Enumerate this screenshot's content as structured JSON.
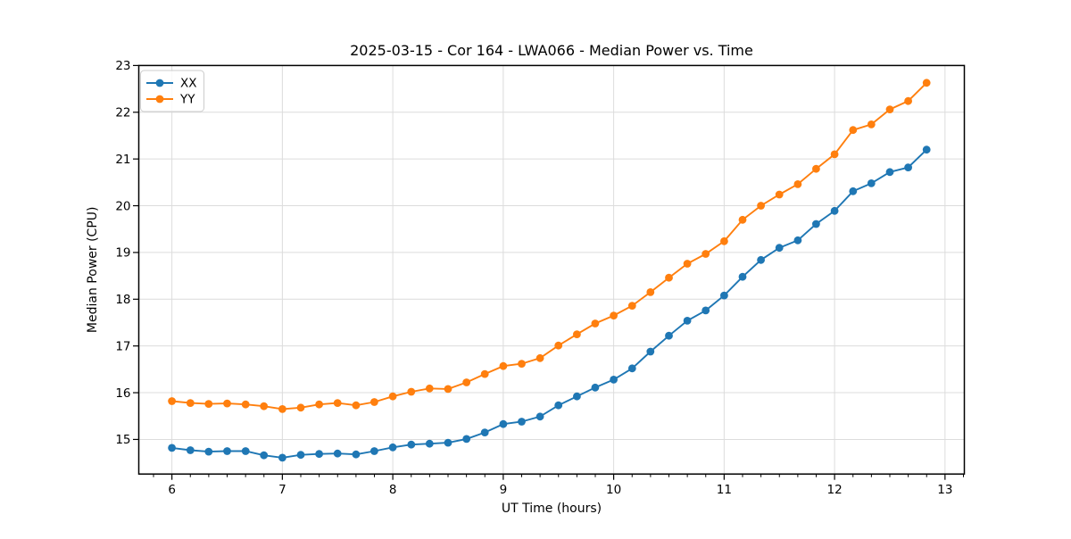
{
  "figure": {
    "background": "#ffffff",
    "text_color": "#000000",
    "grid_color": "#dcdcdc",
    "spine_color": "#000000"
  },
  "chart_data": {
    "type": "line",
    "title": "2025-03-15 - Cor 164 - LWA066 - Median Power vs. Time",
    "xlabel": "UT Time (hours)",
    "ylabel": "Median Power (CPU)",
    "xlim": [
      5.7,
      13.175
    ],
    "ylim": [
      14.26,
      23.0
    ],
    "xticks": [
      6,
      7,
      8,
      9,
      10,
      11,
      12,
      13
    ],
    "yticks": [
      15,
      16,
      17,
      18,
      19,
      20,
      21,
      22,
      23
    ],
    "x_minor_interval": 0.16667,
    "grid": true,
    "legend_position": "upper-left",
    "marker": "circle",
    "x": [
      6.0,
      6.167,
      6.333,
      6.5,
      6.667,
      6.833,
      7.0,
      7.167,
      7.333,
      7.5,
      7.667,
      7.833,
      8.0,
      8.167,
      8.333,
      8.5,
      8.667,
      8.833,
      9.0,
      9.167,
      9.333,
      9.5,
      9.667,
      9.833,
      10.0,
      10.167,
      10.333,
      10.5,
      10.667,
      10.833,
      11.0,
      11.167,
      11.333,
      11.5,
      11.667,
      11.833,
      12.0,
      12.167,
      12.333,
      12.5,
      12.667,
      12.833
    ],
    "series": [
      {
        "name": "XX",
        "color": "#1f77b4",
        "values": [
          14.82,
          14.77,
          14.74,
          14.75,
          14.75,
          14.66,
          14.61,
          14.67,
          14.69,
          14.7,
          14.68,
          14.75,
          14.83,
          14.89,
          14.91,
          14.93,
          15.01,
          15.15,
          15.33,
          15.38,
          15.49,
          15.73,
          15.92,
          16.11,
          16.28,
          16.52,
          16.88,
          17.22,
          17.54,
          17.76,
          18.08,
          18.48,
          18.84,
          19.1,
          19.26,
          19.61,
          19.89,
          20.31,
          20.48,
          20.72,
          20.82,
          21.2
        ]
      },
      {
        "name": "YY",
        "color": "#ff7f0e",
        "values": [
          15.82,
          15.78,
          15.76,
          15.77,
          15.75,
          15.71,
          15.65,
          15.68,
          15.75,
          15.78,
          15.73,
          15.8,
          15.92,
          16.02,
          16.09,
          16.08,
          16.22,
          16.4,
          16.57,
          16.62,
          16.74,
          17.01,
          17.25,
          17.48,
          17.65,
          17.86,
          18.15,
          18.46,
          18.76,
          18.97,
          19.24,
          19.7,
          20.0,
          20.24,
          20.46,
          20.79,
          21.1,
          21.62,
          21.74,
          22.06,
          22.24,
          22.63
        ]
      }
    ]
  }
}
